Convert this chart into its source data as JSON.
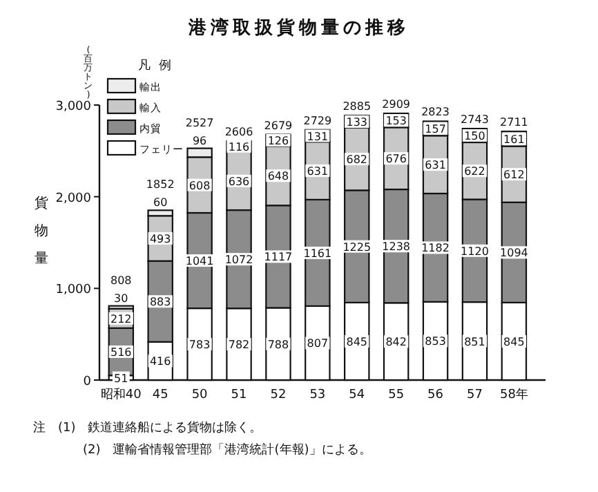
{
  "chart_data": {
    "type": "bar",
    "stacked": true,
    "title": "港湾取扱貨物量の推移",
    "ylabel": "貨物量",
    "legend_title": "凡例",
    "legend": "top left",
    "data_labels": true,
    "categories": [
      "昭和40",
      "45",
      "50",
      "51",
      "52",
      "53",
      "54",
      "55",
      "56",
      "57",
      "58年"
    ],
    "series": [
      {
        "name": "フェリー",
        "color": "#ffffff",
        "values": [
          51,
          416,
          783,
          782,
          788,
          807,
          845,
          842,
          853,
          851,
          845
        ]
      },
      {
        "name": "内貿",
        "color": "#8c8c8c",
        "values": [
          516,
          883,
          1041,
          1072,
          1117,
          1161,
          1225,
          1238,
          1182,
          1120,
          1094
        ]
      },
      {
        "name": "輸入",
        "color": "#c8c8c8",
        "values": [
          212,
          493,
          608,
          636,
          648,
          631,
          682,
          676,
          631,
          622,
          612
        ]
      },
      {
        "name": "輸出",
        "color": "#ececec",
        "values": [
          30,
          60,
          96,
          116,
          126,
          131,
          133,
          153,
          157,
          150,
          161
        ]
      }
    ],
    "totals": [
      "808",
      "1852",
      "2527",
      "2606",
      "2679",
      "2729",
      "2885",
      "2909",
      "2823",
      "2743",
      "2711"
    ],
    "ylim": [
      0,
      3000
    ],
    "yticks": [
      0,
      {
        "value": 1000,
        "label": "1,000"
      },
      {
        "value": 2000,
        "label": "2,000"
      },
      {
        "value": 3000,
        "label": "3,000"
      }
    ],
    "annotations": [
      "(百万トン)",
      "注　(1)　鉄道連絡船による貨物は除く。",
      "(2)　運輸省情報管理部「港湾統計(年報)」による。"
    ]
  }
}
